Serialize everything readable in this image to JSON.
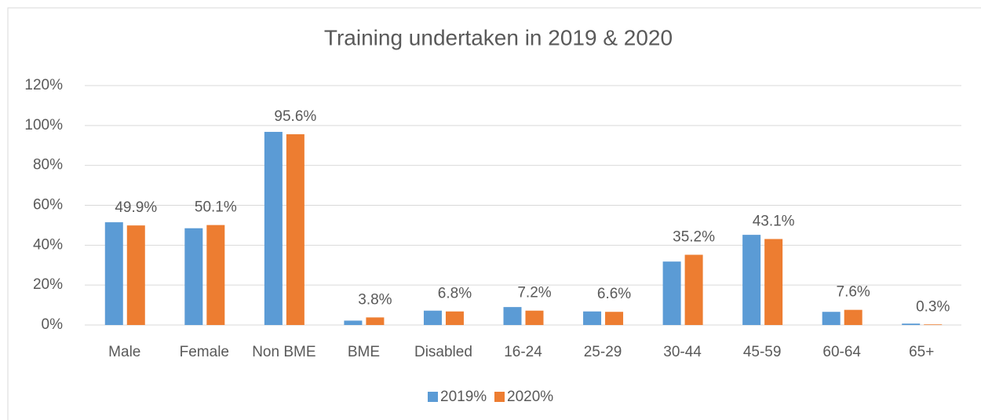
{
  "chart_data": {
    "type": "bar",
    "title": "Training undertaken in 2019 & 2020",
    "categories": [
      "Male",
      "Female",
      "Non BME",
      "BME",
      "Disabled",
      "16-24",
      "25-29",
      "30-44",
      "45-59",
      "60-64",
      "65+"
    ],
    "series": [
      {
        "name": "2019%",
        "color": "#5b9bd5",
        "values": [
          51.5,
          48.5,
          96.8,
          2.2,
          7.2,
          9.0,
          6.8,
          31.8,
          45.2,
          6.6,
          0.7
        ]
      },
      {
        "name": "2020%",
        "color": "#ed7d31",
        "values": [
          49.9,
          50.1,
          95.6,
          3.8,
          6.8,
          7.2,
          6.6,
          35.2,
          43.1,
          7.6,
          0.3
        ],
        "value_labels": [
          "49.9%",
          "50.1%",
          "95.6%",
          "3.8%",
          "6.8%",
          "7.2%",
          "6.6%",
          "35.2%",
          "43.1%",
          "7.6%",
          "0.3%"
        ]
      }
    ],
    "ylim": [
      0,
      120
    ],
    "yticks": [
      {
        "value": 0,
        "label": "0%"
      },
      {
        "value": 20,
        "label": "20%"
      },
      {
        "value": 40,
        "label": "40%"
      },
      {
        "value": 60,
        "label": "60%"
      },
      {
        "value": 80,
        "label": "80%"
      },
      {
        "value": 100,
        "label": "100%"
      },
      {
        "value": 120,
        "label": "120%"
      }
    ],
    "grid": true,
    "legend": "bottom"
  }
}
